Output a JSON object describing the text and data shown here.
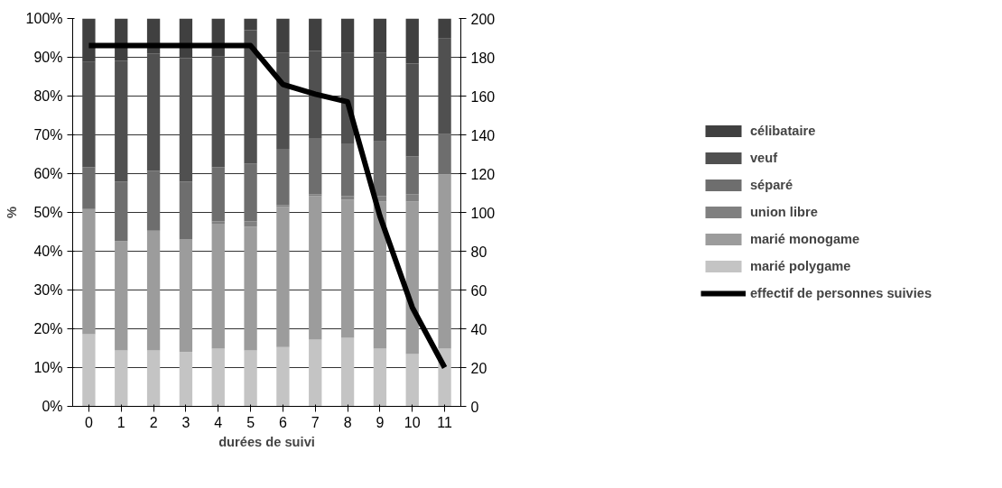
{
  "chart_data": {
    "type": "bar",
    "stacked": true,
    "xlabel": "durées de suivi",
    "ylabel": "%",
    "categories": [
      "0",
      "1",
      "2",
      "3",
      "4",
      "5",
      "6",
      "7",
      "8",
      "9",
      "10",
      "11"
    ],
    "series": [
      {
        "name": "marié polygame",
        "color": "#c4c4c4",
        "values": [
          18.6,
          14.4,
          14.4,
          14.0,
          14.9,
          14.4,
          15.3,
          17.2,
          17.7,
          14.9,
          13.5,
          14.9
        ]
      },
      {
        "name": "marié monogame",
        "color": "#9c9c9c",
        "values": [
          32.3,
          28.2,
          30.9,
          29.0,
          32.2,
          31.9,
          36.1,
          37.0,
          35.6,
          37.9,
          39.3,
          44.9
        ]
      },
      {
        "name": "union libre",
        "color": "#808080",
        "values": [
          0,
          0,
          0,
          0,
          0.6,
          1.4,
          0.5,
          0.5,
          0.9,
          1.4,
          1.9,
          0
        ]
      },
      {
        "name": "séparé",
        "color": "#6e6e6e",
        "values": [
          10.7,
          15.3,
          15.4,
          14.9,
          13.9,
          14.9,
          14.5,
          14.5,
          13.6,
          14.1,
          9.8,
          10.4
        ]
      },
      {
        "name": "veuf",
        "color": "#505050",
        "values": [
          27.2,
          31.2,
          30.3,
          31.9,
          28.6,
          34.4,
          24.7,
          22.4,
          23.3,
          22.8,
          23.9,
          24.6
        ]
      },
      {
        "name": "célibataire",
        "color": "#404040",
        "values": [
          11.2,
          10.9,
          9.0,
          10.2,
          9.8,
          3.0,
          8.9,
          8.4,
          8.9,
          8.9,
          11.6,
          5.2
        ]
      },
      {
        "name": "effectif de personnes suivies",
        "type": "line",
        "axis": "y2",
        "color": "#000000",
        "values": [
          186,
          186,
          186,
          186,
          186,
          186,
          166,
          161,
          157,
          98,
          51,
          20
        ]
      }
    ],
    "ylim": [
      0,
      100
    ],
    "yticks": [
      {
        "value": 0,
        "label": "0%"
      },
      {
        "value": 10,
        "label": "10%"
      },
      {
        "value": 20,
        "label": "20%"
      },
      {
        "value": 30,
        "label": "30%"
      },
      {
        "value": 40,
        "label": "40%"
      },
      {
        "value": 50,
        "label": "50%"
      },
      {
        "value": 60,
        "label": "60%"
      },
      {
        "value": 70,
        "label": "70%"
      },
      {
        "value": 80,
        "label": "80%"
      },
      {
        "value": 90,
        "label": "90%"
      },
      {
        "value": 100,
        "label": "100%"
      }
    ],
    "y2lim": [
      0,
      200
    ],
    "y2ticks": [
      0,
      20,
      40,
      60,
      80,
      100,
      120,
      140,
      160,
      180,
      200
    ],
    "grid": "y",
    "legend": "right",
    "marker": "none",
    "line_style": "solid"
  }
}
